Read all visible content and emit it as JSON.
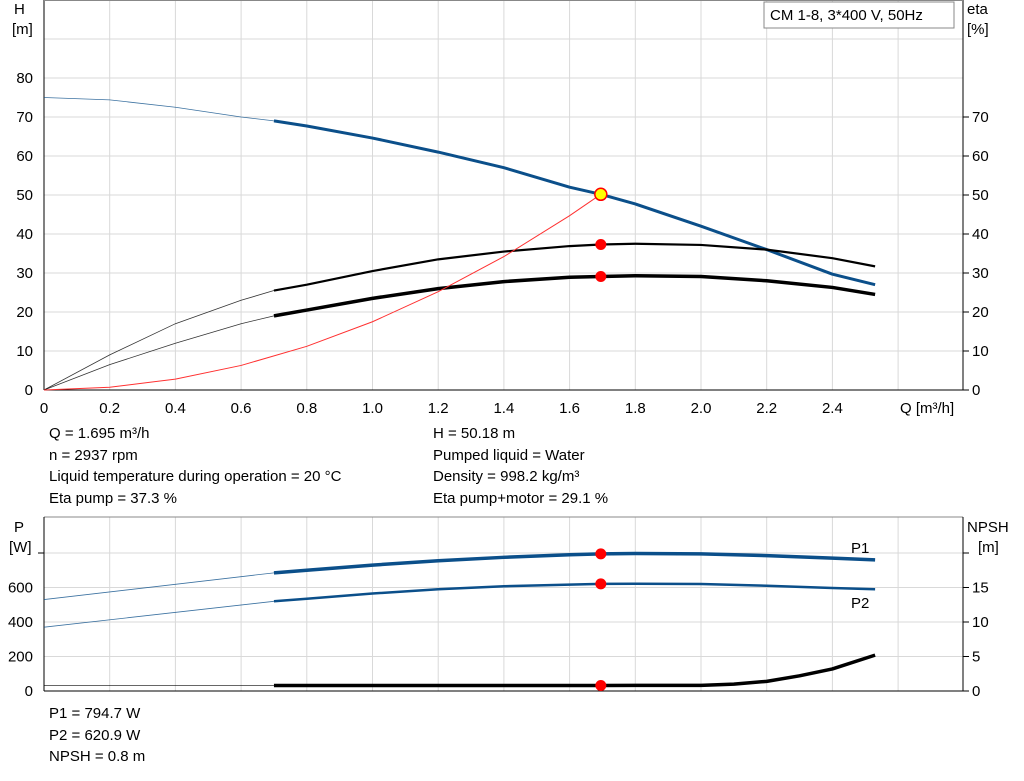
{
  "chart_data": [
    {
      "type": "line",
      "title": "CM 1-8, 3*400 V, 50Hz",
      "xlabel": "Q [m³/h]",
      "ylabel_left": [
        "H",
        "[m]"
      ],
      "ylabel_right": [
        "eta",
        "[%]"
      ],
      "xlim": [
        0,
        2.8
      ],
      "ylim": [
        0,
        90
      ],
      "x_ticks": [
        "0",
        "0.2",
        "0.4",
        "0.6",
        "0.8",
        "1.0",
        "1.2",
        "1.4",
        "1.6",
        "1.8",
        "2.0",
        "2.2",
        "2.4"
      ],
      "y_ticks_left": [
        "0",
        "10",
        "20",
        "30",
        "40",
        "50",
        "60",
        "70",
        "80"
      ],
      "y_ticks_right": [
        "0",
        "10",
        "20",
        "30",
        "40",
        "50",
        "60",
        "70"
      ],
      "grid": true,
      "duty_point": {
        "q": 1.695,
        "h": 50.18,
        "eta_pump": 37.3,
        "eta_pump_motor": 29.1
      },
      "series": [
        {
          "key": "H",
          "color": "#0b4f8a",
          "thick_from": 0.7,
          "width": 3,
          "x": [
            0,
            0.2,
            0.4,
            0.6,
            0.7,
            0.8,
            1.0,
            1.2,
            1.4,
            1.6,
            1.695,
            1.8,
            2.0,
            2.2,
            2.4,
            2.53
          ],
          "y": [
            75,
            74.4,
            72.5,
            70,
            69,
            67.7,
            64.6,
            61,
            57,
            52,
            50.18,
            47.7,
            42,
            36,
            29.7,
            27
          ]
        },
        {
          "key": "eta_pump",
          "color": "#000000",
          "thick_from": 0.7,
          "width": 2.2,
          "x": [
            0,
            0.2,
            0.4,
            0.6,
            0.7,
            0.8,
            1.0,
            1.2,
            1.4,
            1.6,
            1.695,
            1.8,
            2.0,
            2.2,
            2.4,
            2.53
          ],
          "y": [
            0,
            9,
            17,
            23,
            25.5,
            27,
            30.5,
            33.5,
            35.5,
            36.9,
            37.3,
            37.5,
            37.2,
            36,
            33.8,
            31.7
          ]
        },
        {
          "key": "eta_pump_motor",
          "color": "#000000",
          "thick_from": 0.7,
          "width": 3.5,
          "x": [
            0,
            0.2,
            0.4,
            0.6,
            0.7,
            0.8,
            1.0,
            1.2,
            1.4,
            1.6,
            1.695,
            1.8,
            2.0,
            2.2,
            2.4,
            2.53
          ],
          "y": [
            0,
            6.5,
            12,
            17,
            19,
            20.5,
            23.5,
            26,
            27.8,
            28.9,
            29.1,
            29.3,
            29.1,
            28,
            26.3,
            24.5
          ]
        },
        {
          "key": "system",
          "color": "#ff3030",
          "thick_from": 99,
          "width": 1,
          "x": [
            0,
            0.2,
            0.4,
            0.6,
            0.8,
            1.0,
            1.2,
            1.4,
            1.6,
            1.695
          ],
          "y": [
            0,
            0.7,
            2.8,
            6.3,
            11.2,
            17.5,
            25.2,
            34.2,
            44.7,
            50.18
          ]
        }
      ]
    },
    {
      "type": "line",
      "xlim": [
        0,
        2.8
      ],
      "ylabel_left": [
        "P",
        "[W]"
      ],
      "ylabel_right": [
        "NPSH",
        "[m]"
      ],
      "ylim": [
        0,
        1000
      ],
      "y_ticks_left": [
        "0",
        "200",
        "400",
        "600"
      ],
      "y_ticks_right": [
        "0",
        "5",
        "10",
        "15"
      ],
      "grid": true,
      "series": [
        {
          "name": "P1",
          "color": "#0b4f8a",
          "thick_from": 0.7,
          "width": 3.5,
          "x": [
            0,
            0.7,
            0.8,
            1.0,
            1.2,
            1.4,
            1.6,
            1.695,
            1.8,
            2.0,
            2.2,
            2.4,
            2.53
          ],
          "y": [
            530,
            685,
            700,
            730,
            755,
            775,
            790,
            794.7,
            797,
            795,
            785,
            770,
            760
          ]
        },
        {
          "name": "P2",
          "color": "#0b4f8a",
          "thick_from": 0.7,
          "width": 2.5,
          "x": [
            0,
            0.7,
            0.8,
            1.0,
            1.2,
            1.4,
            1.6,
            1.695,
            1.8,
            2.0,
            2.2,
            2.4,
            2.53
          ],
          "y": [
            370,
            520,
            535,
            565,
            590,
            607,
            617,
            620.9,
            622,
            620,
            610,
            597,
            590
          ]
        },
        {
          "key": "NPSH",
          "unit": "m",
          "color": "#000000",
          "thick_from": 0.7,
          "width": 3.5,
          "x": [
            0,
            0.7,
            1.0,
            1.5,
            1.695,
            2.0,
            2.1,
            2.2,
            2.3,
            2.4,
            2.53
          ],
          "y": [
            0.8,
            0.8,
            0.8,
            0.8,
            0.8,
            0.82,
            1.0,
            1.4,
            2.2,
            3.2,
            5.2
          ]
        }
      ],
      "duty_point": {
        "q": 1.695,
        "p1": 794.7,
        "p2": 620.9,
        "npsh": 0.8
      }
    }
  ],
  "info_top_left": [
    "Q = 1.695 m³/h",
    "n = 2937 rpm",
    "Liquid temperature during operation = 20 °C",
    "Eta pump = 37.3 %"
  ],
  "info_top_right": [
    "H = 50.18 m",
    "Pumped liquid = Water",
    "Density = 998.2 kg/m³",
    "Eta pump+motor = 29.1 %"
  ],
  "info_bottom": [
    "P1 = 794.7 W",
    "P2 = 620.9 W",
    "NPSH = 0.8 m"
  ],
  "colors": {
    "duty_point": "#ff0000",
    "duty_point_fill": "#ffff00",
    "grid": "#d9d9d9"
  }
}
